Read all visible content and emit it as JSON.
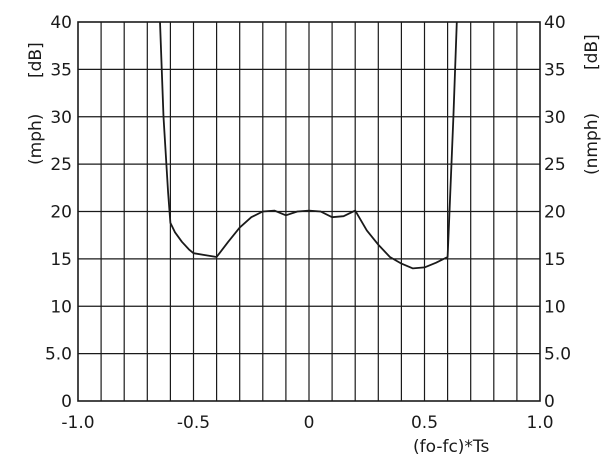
{
  "chart_data": {
    "type": "line",
    "xlabel": "(fo-fc)*Ts",
    "ylabel_left": "(mph)",
    "ylabel_left_unit": "[dB]",
    "ylabel_right": "(nmph)",
    "ylabel_right_unit": "[dB]",
    "xlim": [
      -1.0,
      1.0
    ],
    "ylim": [
      0,
      40
    ],
    "grid": true,
    "x_tick_labels": [
      "-1.0",
      "-0.5",
      "0",
      "0.5",
      "1.0"
    ],
    "y_tick_labels_left": [
      "0",
      "5.0",
      "10",
      "15",
      "20",
      "25",
      "30",
      "35",
      "40"
    ],
    "y_tick_labels_right": [
      "0",
      "5.0",
      "10",
      "15",
      "20",
      "25",
      "30",
      "35",
      "40"
    ],
    "series": [
      {
        "x": [
          -0.645,
          -0.63,
          -0.61,
          -0.6,
          -0.58,
          -0.55,
          -0.52,
          -0.5,
          -0.45,
          -0.4,
          -0.35,
          -0.3,
          -0.25,
          -0.2,
          -0.15,
          -0.12,
          -0.1,
          -0.05,
          0.0,
          0.05,
          0.1,
          0.15,
          0.2,
          0.25,
          0.3,
          0.35,
          0.4,
          0.45,
          0.5,
          0.55,
          0.6,
          0.61,
          0.625,
          0.64
        ],
        "y": [
          40,
          30,
          22,
          18.8,
          17.8,
          16.8,
          16.0,
          15.6,
          15.4,
          15.2,
          16.8,
          18.3,
          19.4,
          20.0,
          20.1,
          19.8,
          19.6,
          20.0,
          20.1,
          20.0,
          19.4,
          19.5,
          20.1,
          18.0,
          16.5,
          15.2,
          14.5,
          14.0,
          14.1,
          14.6,
          15.2,
          21,
          30,
          40
        ]
      }
    ]
  }
}
